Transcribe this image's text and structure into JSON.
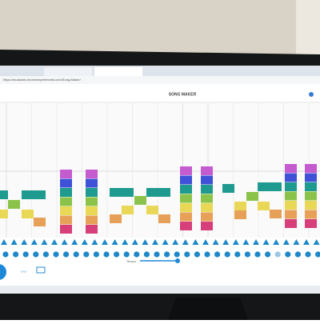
{
  "browser": {
    "url": "https://musiclab.chromeexperiments.com/Song-Maker/"
  },
  "app": {
    "title": "SONG MAKER",
    "tempo_label": "Tempo"
  }
}
